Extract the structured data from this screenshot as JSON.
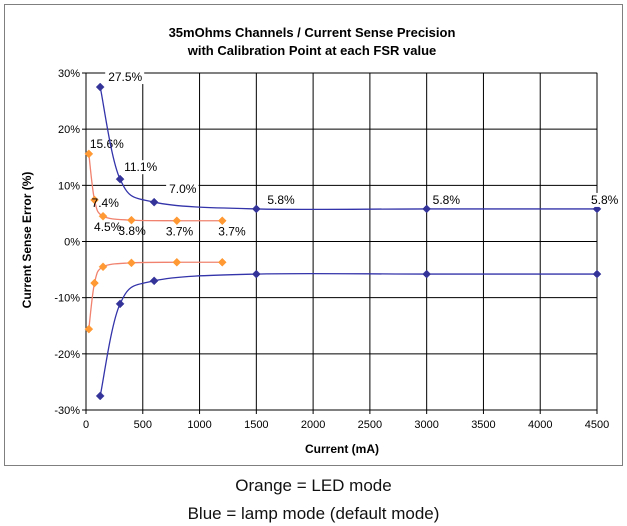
{
  "chart_data": {
    "type": "line",
    "title": [
      "35mOhms Channels / Current Sense Precision",
      "with Calibration Point at each FSR value"
    ],
    "xlabel": "Current (mA)",
    "ylabel": "Current Sense Error (%)",
    "xlim": [
      0,
      4500
    ],
    "ylim": [
      -30,
      30
    ],
    "x_ticks": [
      0,
      500,
      1000,
      1500,
      2000,
      2500,
      3000,
      3500,
      4000,
      4500
    ],
    "y_ticks": [
      30,
      20,
      10,
      0,
      -10,
      -20,
      -30
    ],
    "y_tick_labels": [
      "30%",
      "20%",
      "10%",
      "0%",
      "-10%",
      "-20%",
      "-30%"
    ],
    "grid": true,
    "series": [
      {
        "color": "#ff9933",
        "line_color": "#f0826f",
        "marker": "diamond",
        "x": [
          25,
          75,
          150,
          400,
          800,
          1200
        ],
        "upper": [
          15.6,
          7.4,
          4.5,
          3.8,
          3.7,
          3.7
        ],
        "lower": [
          -15.6,
          -7.4,
          -4.5,
          -3.8,
          -3.7,
          -3.7
        ],
        "labels": [
          "15.6%",
          "7.4%",
          "4.5%",
          "3.8%",
          "3.7%",
          "3.7%"
        ]
      },
      {
        "color": "#333399",
        "line_color": "#3333aa",
        "marker": "diamond",
        "x": [
          125,
          300,
          600,
          1500,
          3000,
          4500
        ],
        "upper": [
          27.5,
          11.1,
          7.0,
          5.8,
          5.8,
          5.8
        ],
        "lower": [
          -27.5,
          -11.1,
          -7.0,
          -5.8,
          -5.8,
          -5.8
        ],
        "labels": [
          "27.5%",
          "11.1%",
          "7.0%",
          "5.8%",
          "5.8%",
          "5.8%"
        ]
      }
    ]
  },
  "captions": {
    "orange": "Orange = LED mode",
    "blue": "Blue = lamp mode (default mode)"
  }
}
